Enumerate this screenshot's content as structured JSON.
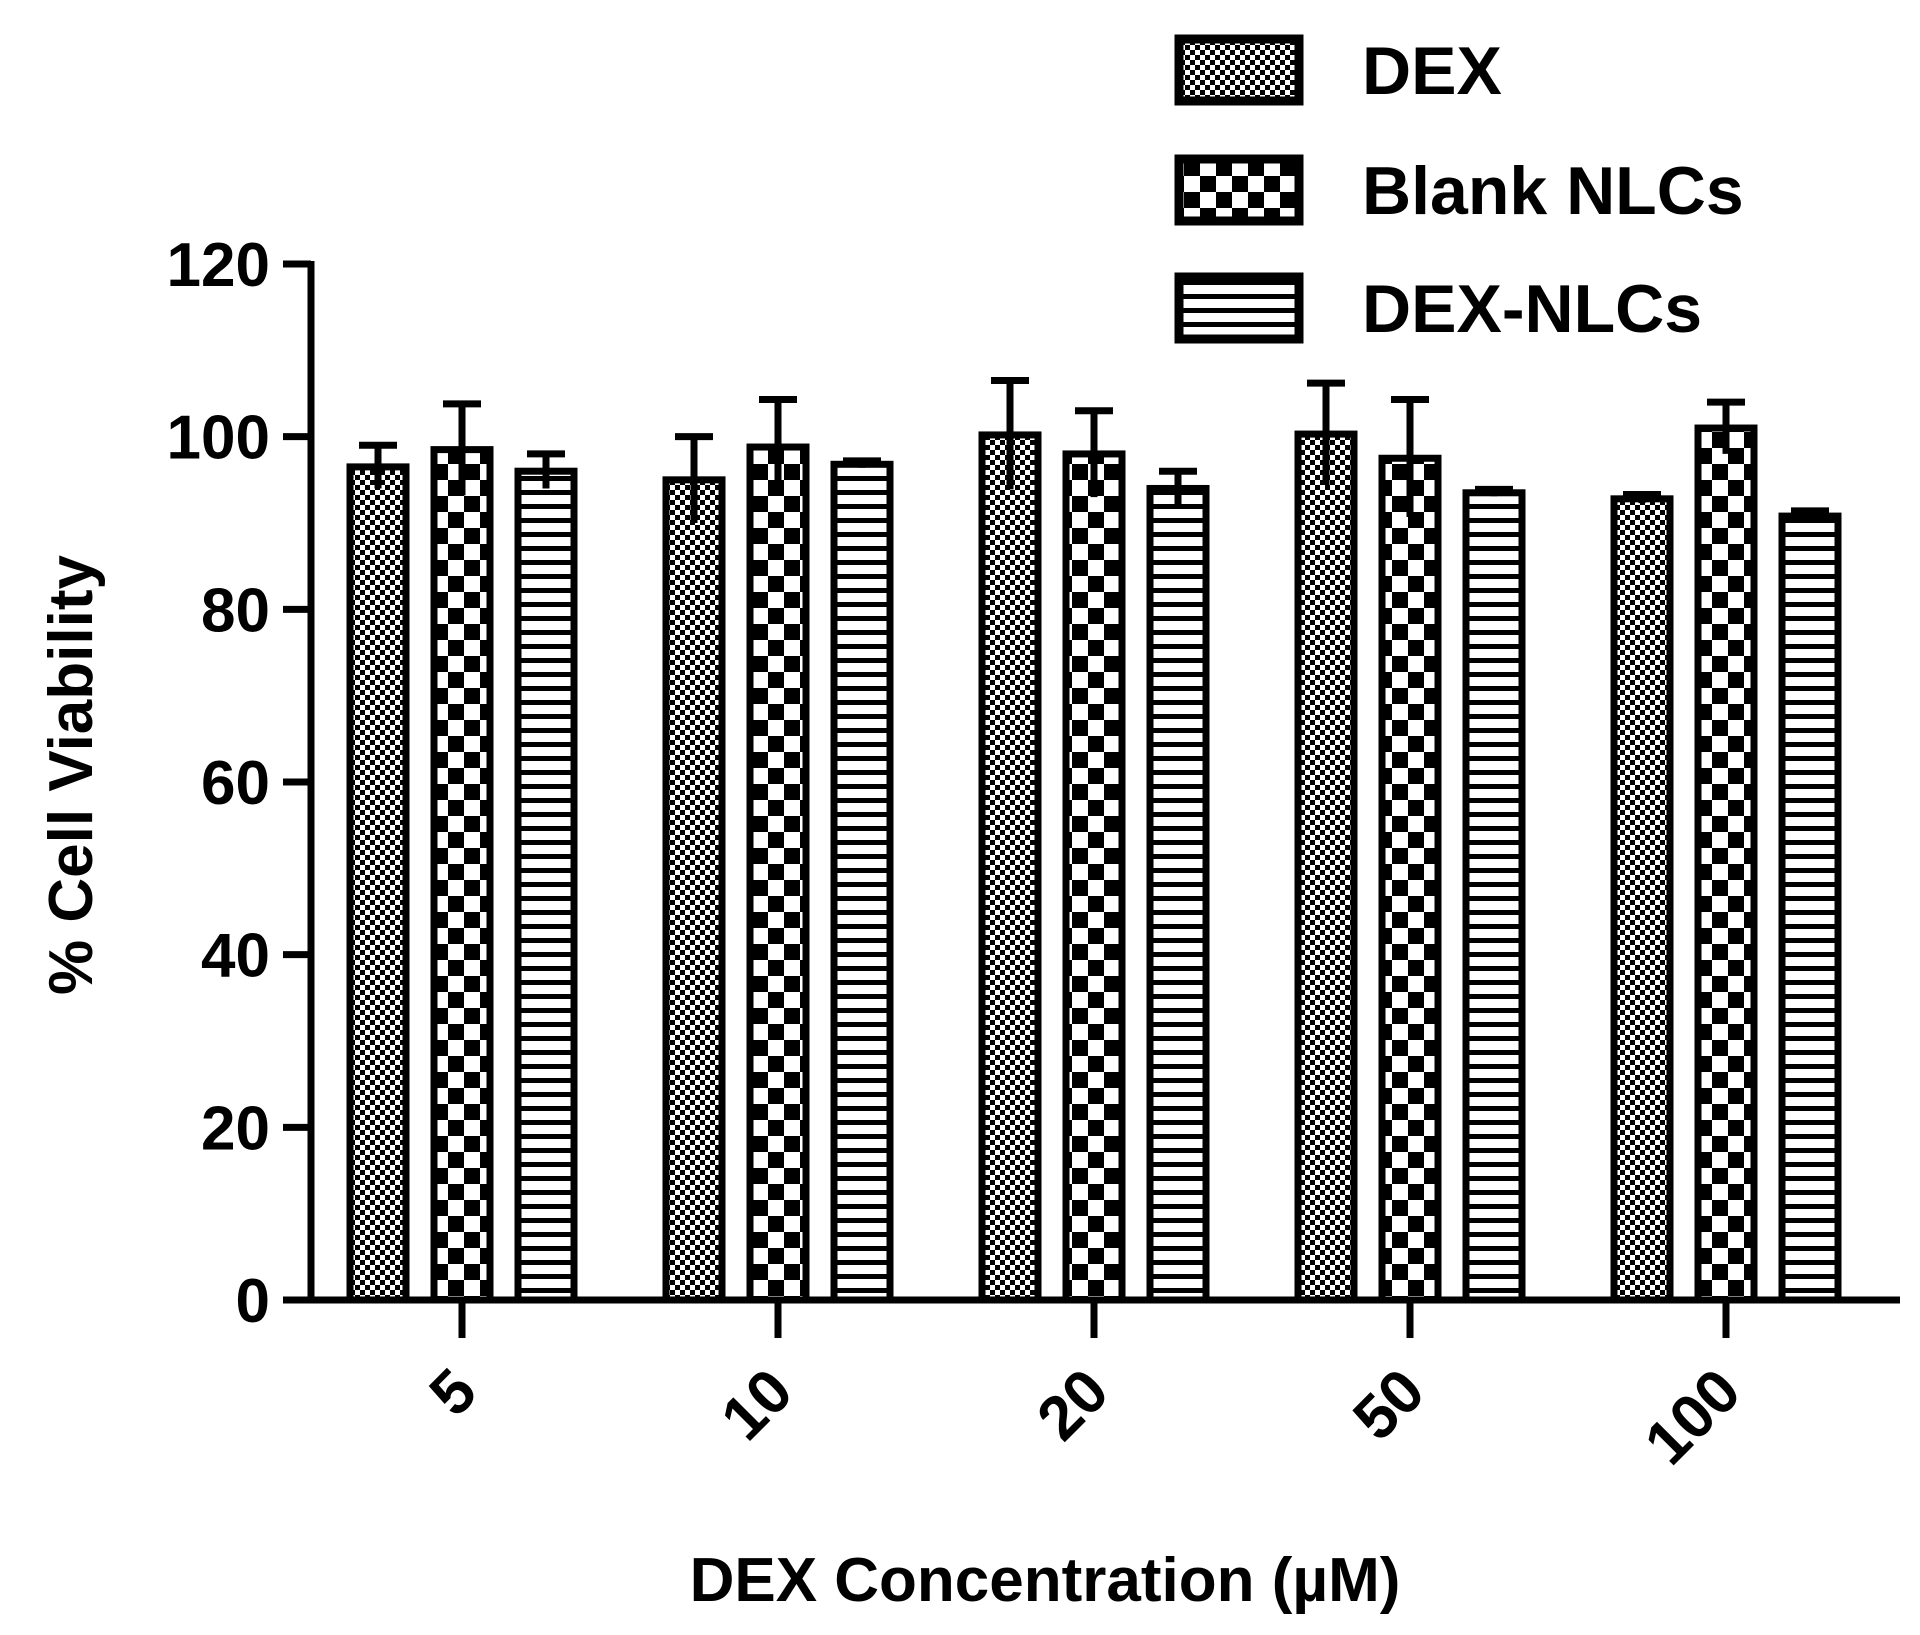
{
  "chart_data": {
    "type": "bar",
    "xlabel": "DEX Concentration (µM)",
    "ylabel": "% Cell Viability",
    "categories": [
      "5",
      "10",
      "20",
      "50",
      "100"
    ],
    "ylim": [
      0,
      120
    ],
    "yticks": [
      "0",
      "20",
      "40",
      "60",
      "80",
      "100",
      "120"
    ],
    "legend_position": "top-right",
    "grid": false,
    "series": [
      {
        "name": "DEX",
        "pattern": "fine-checker",
        "values": [
          96.5,
          95.0,
          100.2,
          100.3,
          92.8
        ],
        "errors": [
          2.5,
          5.0,
          6.3,
          5.9,
          0.5
        ]
      },
      {
        "name": "Blank NLCs",
        "pattern": "coarse-checker",
        "values": [
          98.5,
          98.8,
          98.0,
          97.5,
          101.0
        ],
        "errors": [
          5.3,
          5.5,
          5.0,
          6.8,
          3.0
        ]
      },
      {
        "name": "DEX-NLCs",
        "pattern": "horizontal-stripes",
        "values": [
          96.0,
          96.8,
          94.0,
          93.5,
          90.8
        ],
        "errors": [
          2.0,
          0.4,
          2.0,
          0.4,
          0.6
        ]
      }
    ]
  },
  "colors": {
    "ink": "#000000",
    "background": "#ffffff"
  }
}
